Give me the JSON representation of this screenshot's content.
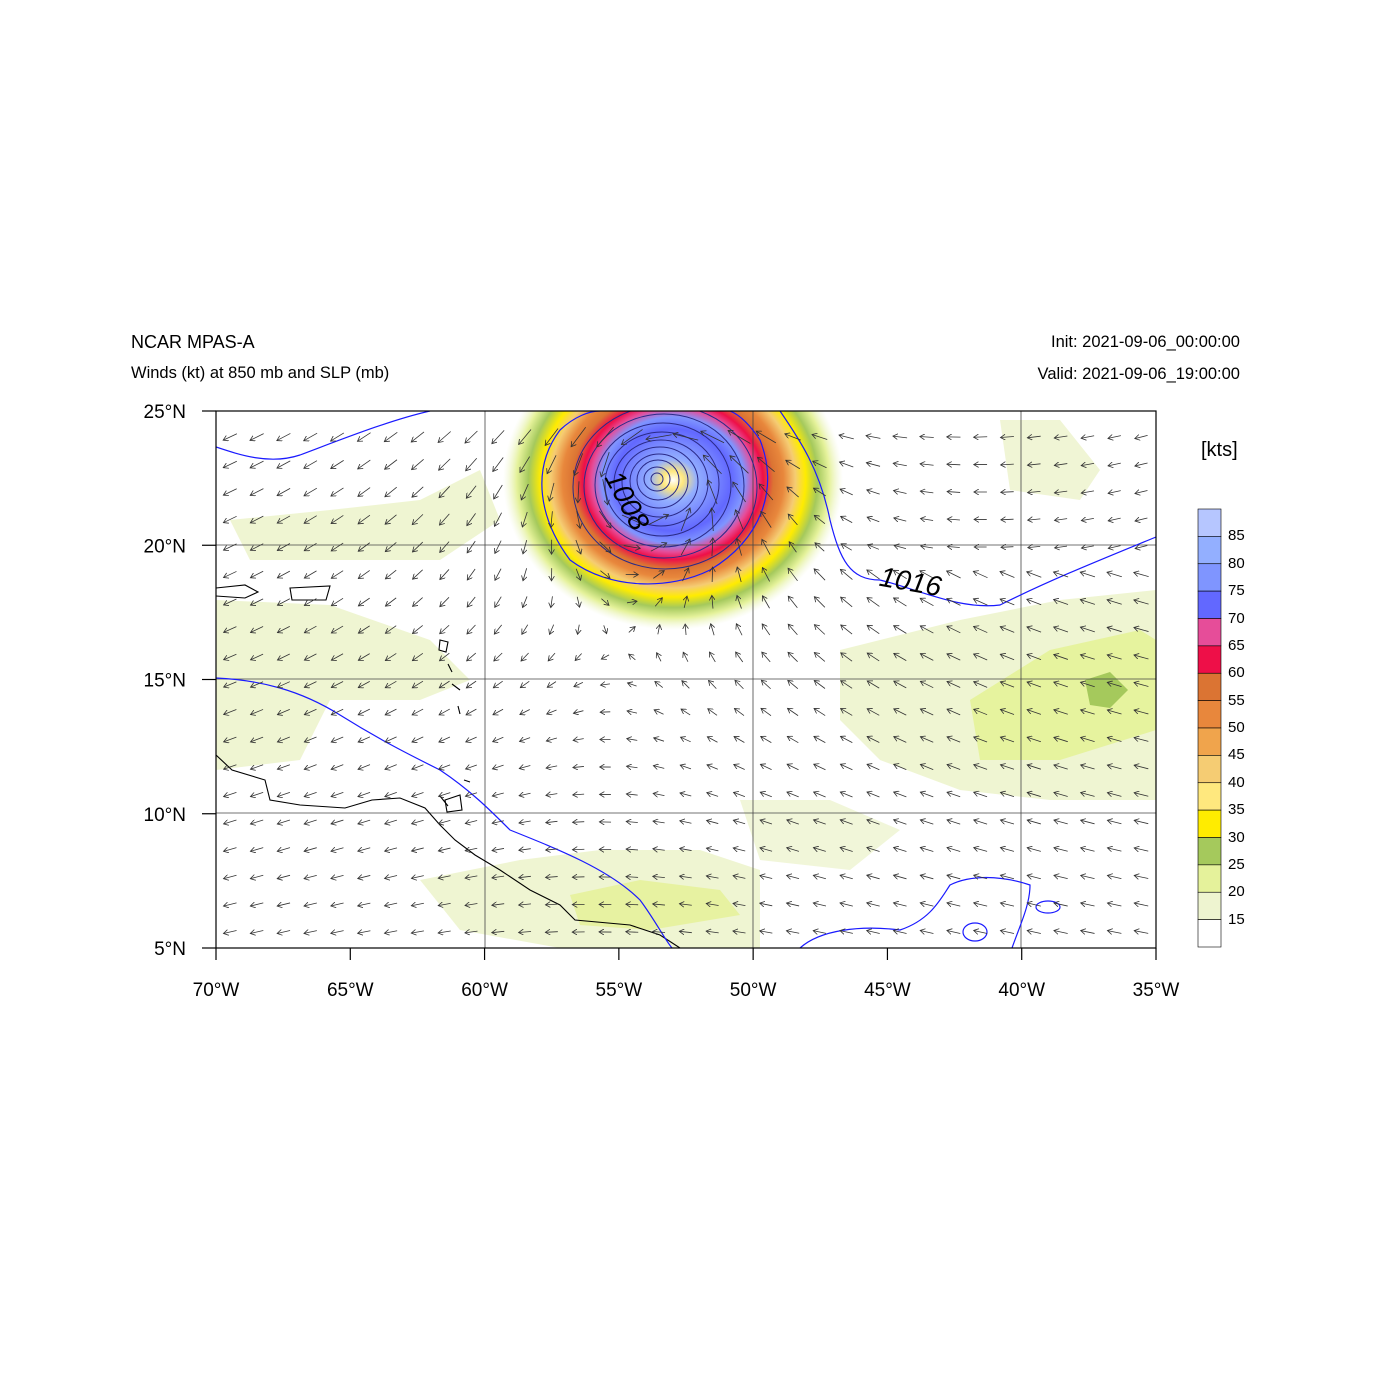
{
  "header": {
    "model": "NCAR MPAS-A",
    "fields": "Winds (kt) at 850 mb and SLP (mb)",
    "init": "Init: 2021-09-06_00:00:00",
    "valid": "Valid: 2021-09-06_19:00:00"
  },
  "map": {
    "lon_range": [
      -70,
      -35
    ],
    "lat_range": [
      5,
      25
    ],
    "lon_ticks": [
      "70°W",
      "65°W",
      "60°W",
      "55°W",
      "50°W",
      "45°W",
      "40°W",
      "35°W"
    ],
    "lat_ticks": [
      "25°N",
      "20°N",
      "15°N",
      "10°N",
      "5°N"
    ],
    "gridlines": true,
    "contour_color": "#1a1aff",
    "contour_labels": [
      {
        "text": "1008",
        "lon": -55.0,
        "lat": 21.5
      },
      {
        "text": "1016",
        "lon": -44.2,
        "lat": 18.3
      }
    ],
    "storm_center": {
      "lon": -53.6,
      "lat": 22.5
    }
  },
  "colorbar": {
    "unit": "[kts]",
    "labels": [
      "85",
      "80",
      "75",
      "70",
      "65",
      "60",
      "55",
      "50",
      "45",
      "40",
      "35",
      "30",
      "25",
      "20",
      "15"
    ],
    "colors": [
      "#b6c6ff",
      "#93afff",
      "#7f95ff",
      "#6268ff",
      "#e64d99",
      "#ee0f48",
      "#db7433",
      "#e8873c",
      "#f0a44c",
      "#f5cc73",
      "#ffe87e",
      "#ffec00",
      "#a5c95c",
      "#e5f29b",
      "#eef4d0",
      "#ffffff"
    ]
  }
}
